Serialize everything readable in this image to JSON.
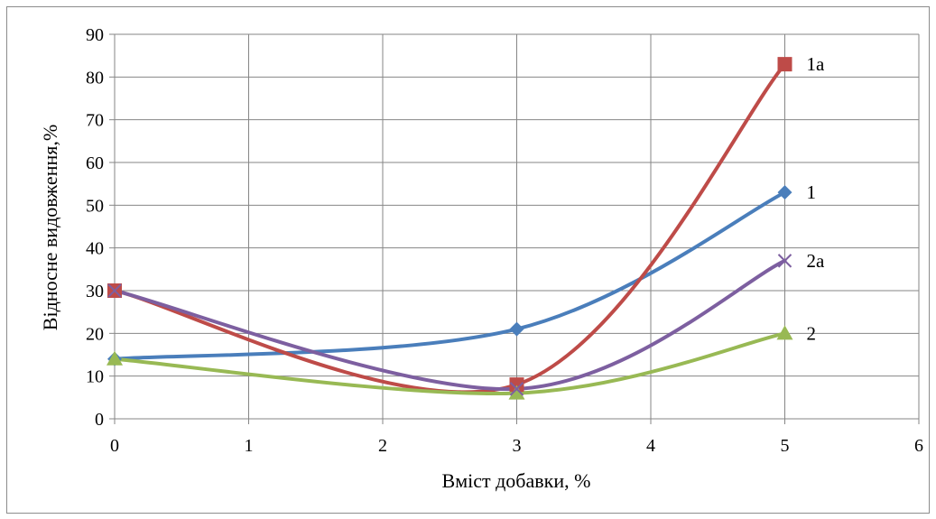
{
  "chart_data": {
    "type": "line",
    "title": "",
    "xlabel": "Вміст добавки, %",
    "ylabel": "Відносне видовження,%",
    "xlim": [
      0,
      6
    ],
    "ylim": [
      0,
      90
    ],
    "xticks": [
      "0",
      "1",
      "2",
      "3",
      "4",
      "5",
      "6"
    ],
    "yticks": [
      "0",
      "10",
      "20",
      "30",
      "40",
      "50",
      "60",
      "70",
      "80",
      "90"
    ],
    "grid": true,
    "legend": "none",
    "smooth": true,
    "series": [
      {
        "name": "1",
        "color": "#4a7ebb",
        "marker": "diamond",
        "x": [
          0,
          3,
          5
        ],
        "y": [
          14,
          21,
          53
        ]
      },
      {
        "name": "1a",
        "color": "#be4b48",
        "marker": "square",
        "x": [
          0,
          3,
          5
        ],
        "y": [
          30,
          8,
          83
        ]
      },
      {
        "name": "2",
        "color": "#98b954",
        "marker": "triangle",
        "x": [
          0,
          3,
          5
        ],
        "y": [
          14,
          6,
          20
        ]
      },
      {
        "name": "2a",
        "color": "#7d5fa0",
        "marker": "x",
        "x": [
          0,
          3,
          5
        ],
        "y": [
          30,
          7,
          37
        ]
      }
    ]
  }
}
